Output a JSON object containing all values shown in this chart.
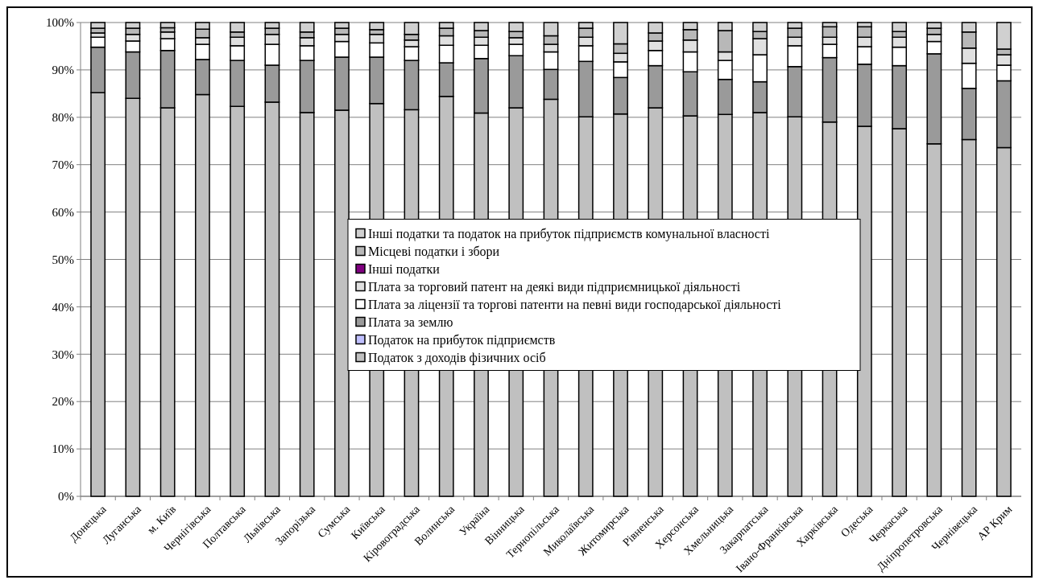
{
  "chart_data": {
    "type": "bar",
    "stacked": true,
    "legend": "center",
    "grid": "y",
    "categories": [
      "Донецька",
      "Луганська",
      "м. Київ",
      "Чернігівська",
      "Полтавська",
      "Львівська",
      "Запорізька",
      "Сумська",
      "Київська",
      "Кіровоградська",
      "Волинська",
      "Україна",
      "Вінницька",
      "Тернопільська",
      "Миколаївська",
      "Житомирська",
      "Рівненська",
      "Херсонська",
      "Хмельницька",
      "Закарпатська",
      "Івано-Франківська",
      "Харківська",
      "Одеська",
      "Черкаська",
      "Дніпропетровська",
      "Чернівецька",
      "АР Крим"
    ],
    "ylim": [
      0,
      100
    ],
    "yticks": [
      {
        "value": 0,
        "label": "0%"
      },
      {
        "value": 10,
        "label": "10%"
      },
      {
        "value": 20,
        "label": "20%"
      },
      {
        "value": 30,
        "label": "30%"
      },
      {
        "value": 40,
        "label": "40%"
      },
      {
        "value": 50,
        "label": "50%"
      },
      {
        "value": 60,
        "label": "60%"
      },
      {
        "value": 70,
        "label": "70%"
      },
      {
        "value": 80,
        "label": "80%"
      },
      {
        "value": 90,
        "label": "90%"
      },
      {
        "value": 100,
        "label": "100%"
      }
    ],
    "series": [
      {
        "name": "Податок з доходів фізичних осіб",
        "color": "#c0c0c0",
        "values": [
          85.2,
          84.0,
          82.0,
          84.8,
          82.3,
          83.2,
          81.0,
          81.5,
          82.9,
          81.6,
          84.4,
          80.9,
          82.0,
          83.8,
          80.1,
          80.7,
          82.0,
          80.3,
          80.6,
          81.0,
          80.1,
          79.0,
          78.1,
          77.6,
          74.4,
          75.3,
          73.6
        ]
      },
      {
        "name": "Податок на прибуток підприємств",
        "color": "#c0c0ff",
        "values": [
          0,
          0,
          0,
          0,
          0,
          0,
          0,
          0,
          0,
          0,
          0,
          0,
          0,
          0,
          0,
          0,
          0,
          0,
          0,
          0,
          0,
          0,
          0,
          0,
          0,
          0,
          0
        ]
      },
      {
        "name": "Плата за землю",
        "color": "#9a9a9a",
        "values": [
          9.6,
          9.8,
          12.1,
          7.4,
          9.7,
          7.8,
          11.0,
          11.2,
          9.8,
          10.4,
          7.1,
          11.5,
          11.0,
          6.3,
          11.7,
          7.7,
          8.9,
          9.3,
          7.4,
          6.5,
          10.6,
          13.6,
          13.1,
          13.3,
          19.0,
          10.8,
          14.1
        ]
      },
      {
        "name": "Плата за ліцензії та торгові патенти на певні види господарської діяльності",
        "color": "#ffffff",
        "values": [
          2.1,
          2.3,
          2.5,
          3.2,
          3.1,
          4.4,
          3.1,
          3.3,
          3.0,
          2.9,
          3.7,
          2.8,
          2.4,
          3.7,
          3.3,
          3.3,
          3.2,
          4.2,
          4.0,
          5.7,
          4.4,
          2.8,
          3.7,
          3.9,
          2.6,
          5.3,
          3.3
        ]
      },
      {
        "name": "Плата за торговий патент на деякі види підприємницької діяльності",
        "color": "#e0e0e0",
        "values": [
          0.9,
          1.4,
          1.4,
          1.4,
          1.8,
          2.1,
          1.7,
          1.5,
          1.8,
          1.4,
          2.0,
          1.7,
          1.4,
          1.6,
          1.8,
          1.8,
          2.0,
          2.5,
          1.8,
          3.4,
          1.8,
          1.5,
          2.0,
          2.1,
          1.5,
          3.2,
          2.2
        ]
      },
      {
        "name": "Інші податки",
        "color": "#800080",
        "values": [
          0,
          0,
          0,
          0,
          0,
          0,
          0,
          0,
          0,
          0,
          0,
          0,
          0,
          0,
          0,
          0,
          0,
          0,
          0,
          0,
          0,
          0,
          0,
          0,
          0,
          0,
          0
        ]
      },
      {
        "name": "Місцеві податки і збори",
        "color": "#b8b8b8",
        "values": [
          1.0,
          1.3,
          0.9,
          1.8,
          1.1,
          1.3,
          1.2,
          1.3,
          1.0,
          1.2,
          1.6,
          1.4,
          1.3,
          1.8,
          1.9,
          2.0,
          1.7,
          2.2,
          4.5,
          1.5,
          1.9,
          2.2,
          2.2,
          1.2,
          1.3,
          3.4,
          1.2
        ]
      },
      {
        "name": "Інші податки та податок на прибуток підприємств комунальної власності",
        "color": "#d0d0d0",
        "values": [
          1.2,
          1.2,
          1.1,
          1.4,
          2.0,
          1.2,
          2.0,
          1.2,
          1.5,
          2.5,
          1.2,
          1.7,
          1.9,
          2.8,
          1.2,
          4.5,
          2.2,
          1.5,
          1.7,
          1.9,
          1.2,
          0.9,
          0.9,
          1.9,
          1.2,
          2.0,
          5.6
        ]
      }
    ]
  }
}
